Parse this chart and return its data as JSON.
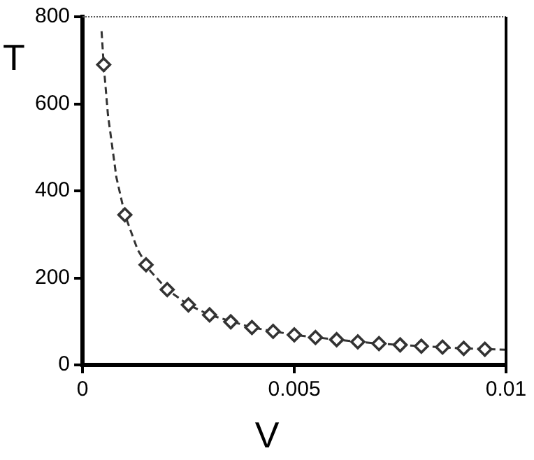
{
  "chart_data": {
    "type": "scatter",
    "xlabel": "V",
    "ylabel": "T",
    "xlim": [
      0,
      0.01
    ],
    "ylim": [
      0,
      800
    ],
    "xticks": [
      0,
      0.005,
      0.01
    ],
    "yticks": [
      0,
      200,
      400,
      600,
      800
    ],
    "grid": false,
    "legend": false,
    "series": [
      {
        "type": "scatter",
        "color": "#333333",
        "marker": "diamond",
        "x": [
          0.0005,
          0.001,
          0.0015,
          0.002,
          0.0025,
          0.003,
          0.0035,
          0.004,
          0.0045,
          0.005,
          0.0055,
          0.006,
          0.0065,
          0.007,
          0.0075,
          0.008,
          0.0085,
          0.009,
          0.0095
        ],
        "values": [
          690,
          345,
          230,
          173,
          138,
          115,
          99,
          86,
          77,
          69,
          63,
          58,
          53,
          49,
          46,
          43,
          41,
          38,
          36
        ]
      },
      {
        "type": "line",
        "color": "#333333",
        "marker": "none",
        "line_style": "dashed",
        "x": [
          0.00045,
          0.0005,
          0.0006,
          0.0008,
          0.001,
          0.0013,
          0.0016,
          0.002,
          0.0025,
          0.003,
          0.004,
          0.005,
          0.006,
          0.007,
          0.008,
          0.009,
          0.01
        ],
        "values": [
          767,
          690,
          575,
          431,
          345,
          265,
          216,
          173,
          138,
          115,
          86,
          69,
          58,
          49,
          43,
          38,
          35
        ]
      }
    ]
  }
}
